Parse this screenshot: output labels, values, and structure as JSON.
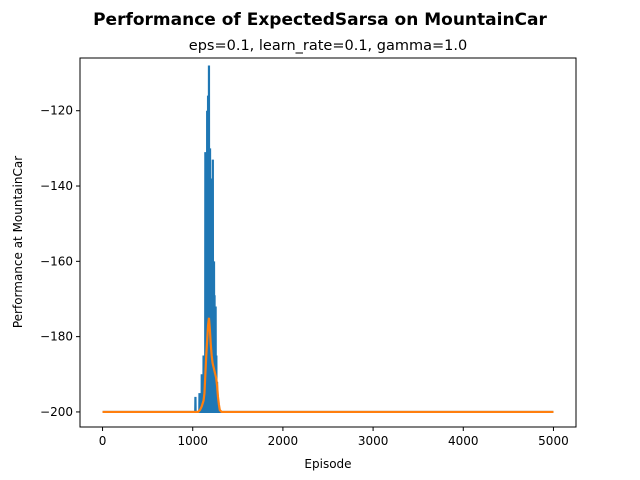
{
  "chart_data": {
    "type": "line",
    "title": "Performance of ExpectedSarsa on MountainCar",
    "subtitle": "eps=0.1, learn_rate=0.1, gamma=1.0",
    "xlabel": "Episode",
    "ylabel": "Performance at MountainCar",
    "xlim": [
      -250,
      5250
    ],
    "ylim": [
      -204,
      -106
    ],
    "xticks": [
      0,
      1000,
      2000,
      3000,
      4000,
      5000
    ],
    "yticks": [
      -200,
      -180,
      -160,
      -140,
      -120
    ],
    "grid": false,
    "legend": "none",
    "series": [
      {
        "color": "#1f77b4",
        "baseline": -200,
        "spikes": [
          [
            1030,
            -196
          ],
          [
            1040,
            -200
          ],
          [
            1060,
            -200
          ],
          [
            1075,
            -195
          ],
          [
            1085,
            -200
          ],
          [
            1100,
            -190
          ],
          [
            1110,
            -200
          ],
          [
            1120,
            -185
          ],
          [
            1130,
            -200
          ],
          [
            1140,
            -131
          ],
          [
            1148,
            -170
          ],
          [
            1155,
            -150
          ],
          [
            1160,
            -120
          ],
          [
            1165,
            -135
          ],
          [
            1170,
            -116
          ],
          [
            1175,
            -175
          ],
          [
            1180,
            -108
          ],
          [
            1186,
            -160
          ],
          [
            1192,
            -130
          ],
          [
            1198,
            -175
          ],
          [
            1203,
            -145
          ],
          [
            1208,
            -185
          ],
          [
            1213,
            -138
          ],
          [
            1218,
            -178
          ],
          [
            1223,
            -133
          ],
          [
            1230,
            -180
          ],
          [
            1236,
            -160
          ],
          [
            1242,
            -169
          ],
          [
            1248,
            -190
          ],
          [
            1254,
            -172
          ],
          [
            1262,
            -185
          ],
          [
            1270,
            -192
          ],
          [
            1278,
            -196
          ],
          [
            1290,
            -200
          ]
        ]
      },
      {
        "color": "#ff7f0e",
        "points": [
          [
            0,
            -200
          ],
          [
            1000,
            -200
          ],
          [
            1060,
            -200
          ],
          [
            1080,
            -199.5
          ],
          [
            1100,
            -198.5
          ],
          [
            1120,
            -197
          ],
          [
            1130,
            -195
          ],
          [
            1140,
            -190
          ],
          [
            1150,
            -185
          ],
          [
            1160,
            -181
          ],
          [
            1170,
            -177
          ],
          [
            1180,
            -175
          ],
          [
            1190,
            -178
          ],
          [
            1200,
            -182
          ],
          [
            1210,
            -185
          ],
          [
            1220,
            -187
          ],
          [
            1230,
            -188
          ],
          [
            1240,
            -189
          ],
          [
            1250,
            -190
          ],
          [
            1260,
            -191
          ],
          [
            1270,
            -193
          ],
          [
            1280,
            -196
          ],
          [
            1290,
            -198
          ],
          [
            1300,
            -199.5
          ],
          [
            1320,
            -200
          ],
          [
            5000,
            -200
          ]
        ]
      }
    ]
  }
}
